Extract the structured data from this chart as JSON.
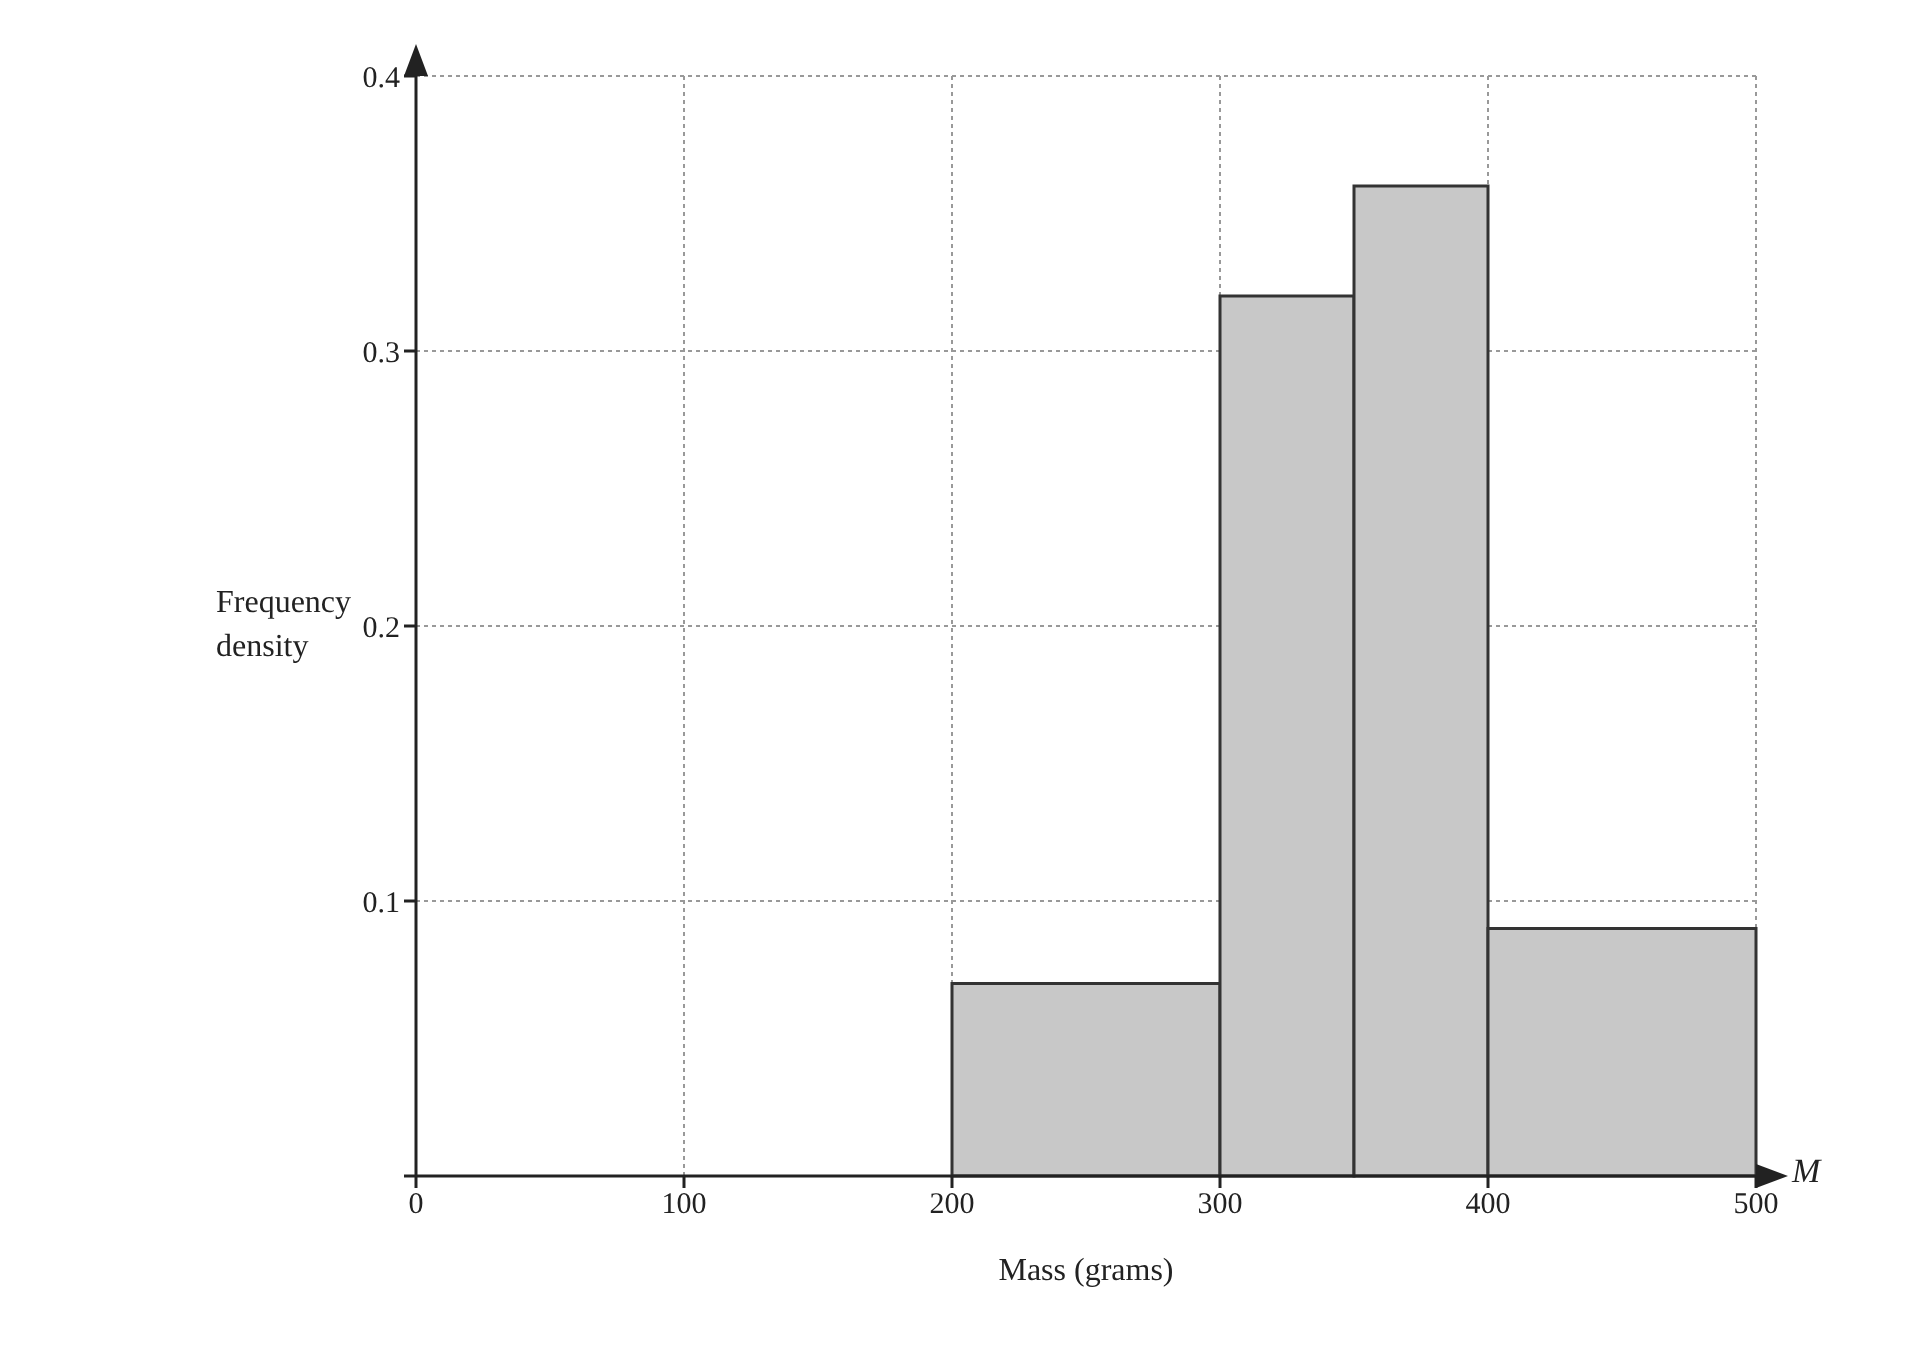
{
  "chart_data": {
    "type": "histogram",
    "xlabel": "Mass (grams)",
    "ylabel": "Frequency density",
    "annotations": [
      "M"
    ],
    "bins": [
      200,
      300,
      350,
      400,
      500
    ],
    "values": [
      0.07,
      0.32,
      0.36,
      0.09
    ],
    "color": "#c8c8c8",
    "xlim": [
      0,
      500
    ],
    "xticks": [
      0,
      100,
      200,
      300,
      400,
      500
    ],
    "ylim": [
      0,
      0.4
    ],
    "yticks": [
      {
        "value": 0,
        "label": null
      },
      0.1,
      0.2,
      0.3,
      0.4
    ],
    "grid": true
  }
}
